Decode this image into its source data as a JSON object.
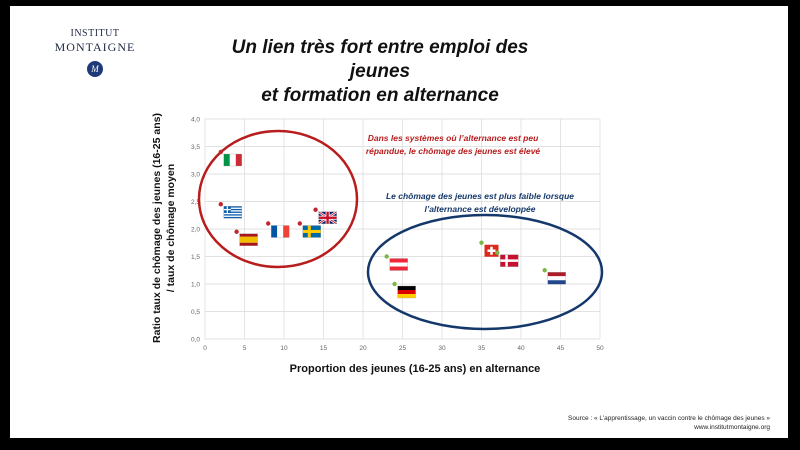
{
  "logo": {
    "line1": "INSTITUT",
    "line2": "MONTAIGNE",
    "mark": "M"
  },
  "title": {
    "line1": "Un lien très fort entre emploi des jeunes",
    "line2": "et formation en alternance"
  },
  "source": {
    "line1": "Source : « L’apprentissage, un vaccin contre le chômage des jeunes »",
    "line2": "www.institutmontaigne.org"
  },
  "colors": {
    "red": "#b81c1c",
    "navy": "#15386b",
    "red_dot": "#c0272d",
    "green_dot": "#7ab648",
    "grid": "#d9d9d9",
    "tick": "#666666"
  },
  "chart_data": {
    "type": "scatter",
    "xlabel": "Proportion  des jeunes (16-25 ans) en alternance",
    "ylabel_line1": "Ratio taux de chômage des jeunes (16-25 ans)",
    "ylabel_line2": "/ taux de chômage moyen",
    "xlim": [
      0,
      50
    ],
    "ylim": [
      0,
      4
    ],
    "x_ticks": [
      0,
      5,
      10,
      15,
      20,
      25,
      30,
      35,
      40,
      45,
      50
    ],
    "y_ticks": [
      "0,0",
      "0,5",
      "1,0",
      "1,5",
      "2,0",
      "2,5",
      "3,0",
      "3,5",
      "4,0"
    ],
    "grid": true,
    "points": [
      {
        "country": "Italy",
        "flag": "italy-flag",
        "x": 2,
        "y": 3.4,
        "group": "low"
      },
      {
        "country": "Greece",
        "flag": "greece-flag",
        "x": 2,
        "y": 2.45,
        "group": "low"
      },
      {
        "country": "Spain",
        "flag": "spain-flag",
        "x": 4,
        "y": 1.95,
        "group": "low"
      },
      {
        "country": "France",
        "flag": "france-flag",
        "x": 8,
        "y": 2.1,
        "group": "low"
      },
      {
        "country": "Sweden",
        "flag": "sweden-flag",
        "x": 12,
        "y": 2.1,
        "group": "low"
      },
      {
        "country": "United Kingdom",
        "flag": "uk-flag",
        "x": 14,
        "y": 2.35,
        "group": "low"
      },
      {
        "country": "Austria",
        "flag": "austria-flag",
        "x": 23,
        "y": 1.5,
        "group": "high"
      },
      {
        "country": "Germany",
        "flag": "germany-flag",
        "x": 24,
        "y": 1.0,
        "group": "high"
      },
      {
        "country": "Switzerland",
        "flag": "switzerland-flag",
        "x": 35,
        "y": 1.75,
        "group": "high"
      },
      {
        "country": "Denmark",
        "flag": "denmark-flag",
        "x": 37,
        "y": 1.57,
        "group": "high"
      },
      {
        "country": "Netherlands",
        "flag": "netherlands-flag",
        "x": 43,
        "y": 1.25,
        "group": "high"
      }
    ],
    "annotations": [
      {
        "id": "low",
        "line1": "Dans les systèmes où l’alternance est peu",
        "line2": "répandue, le chômage des jeunes est élevé",
        "color": "#b81c1c"
      },
      {
        "id": "high",
        "line1": "Le chômage des jeunes est plus faible lorsque",
        "line2": "l’alternance est développée",
        "color": "#15386b"
      }
    ]
  }
}
